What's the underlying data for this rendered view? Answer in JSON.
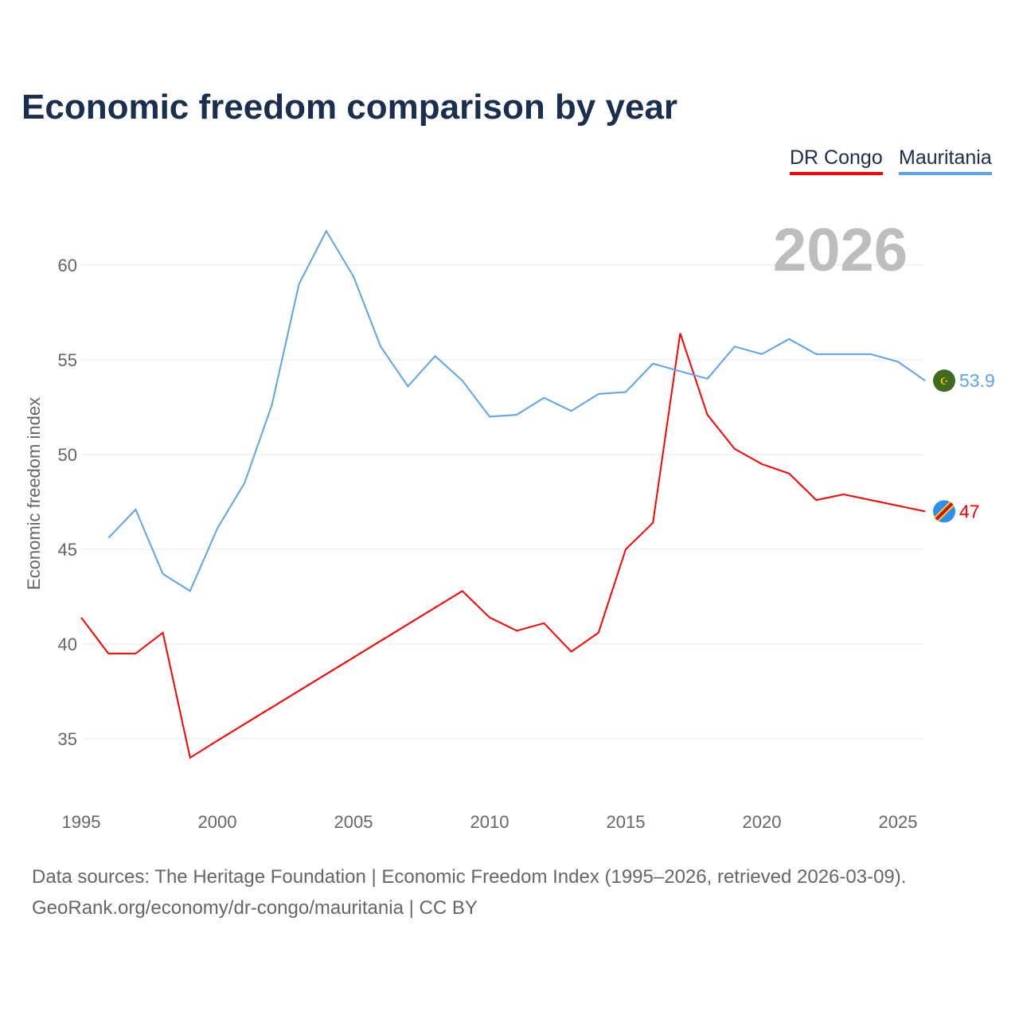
{
  "title": "Economic freedom comparison by year",
  "footer": {
    "line1": "Data sources: The Heritage Foundation | Economic Freedom Index (1995–2026, retrieved 2026-03-09).",
    "line2": "GeoRank.org/economy/dr-congo/mauritania | CC BY"
  },
  "chart_data": {
    "type": "line",
    "title": "Economic freedom comparison by year",
    "xlabel": "",
    "ylabel": "Economic freedom index",
    "year_label": "2026",
    "xlim": [
      1995,
      2026
    ],
    "ylim": [
      32,
      63
    ],
    "xticks": [
      1995,
      2000,
      2005,
      2010,
      2015,
      2020,
      2025
    ],
    "yticks": [
      35,
      40,
      45,
      50,
      55,
      60
    ],
    "grid": true,
    "legend_position": "top-right",
    "series": [
      {
        "name": "DR Congo",
        "color": "#ff0000",
        "end_label": "47",
        "flag_icon": "dr-congo-flag-icon",
        "x": [
          1995,
          1996,
          1997,
          1998,
          1999,
          2000,
          2009,
          2010,
          2011,
          2012,
          2013,
          2014,
          2015,
          2016,
          2017,
          2018,
          2019,
          2020,
          2021,
          2022,
          2023,
          2024,
          2025,
          2026
        ],
        "values": [
          41.4,
          39.5,
          39.5,
          40.6,
          34.0,
          34.9,
          42.8,
          41.4,
          40.7,
          41.1,
          39.6,
          40.6,
          45.0,
          46.4,
          56.4,
          52.1,
          50.3,
          49.5,
          49.0,
          47.6,
          47.9,
          47.6,
          47.3,
          47.0
        ],
        "gap_years": [
          2000,
          2009
        ]
      },
      {
        "name": "Mauritania",
        "color": "#5ba4ec",
        "end_label": "53.9",
        "flag_icon": "mauritania-flag-icon",
        "x": [
          1996,
          1997,
          1998,
          1999,
          2000,
          2001,
          2002,
          2003,
          2004,
          2005,
          2006,
          2007,
          2008,
          2009,
          2010,
          2011,
          2012,
          2013,
          2014,
          2015,
          2016,
          2017,
          2018,
          2019,
          2020,
          2021,
          2022,
          2023,
          2024,
          2025,
          2026
        ],
        "values": [
          45.6,
          47.1,
          43.7,
          42.8,
          46.1,
          48.5,
          52.6,
          59.0,
          61.8,
          59.4,
          55.7,
          53.6,
          55.2,
          53.9,
          52.0,
          52.1,
          53.0,
          52.3,
          53.2,
          53.3,
          54.8,
          54.4,
          54.0,
          55.7,
          55.3,
          56.1,
          55.3,
          55.3,
          55.3,
          54.9,
          53.9
        ]
      }
    ]
  }
}
